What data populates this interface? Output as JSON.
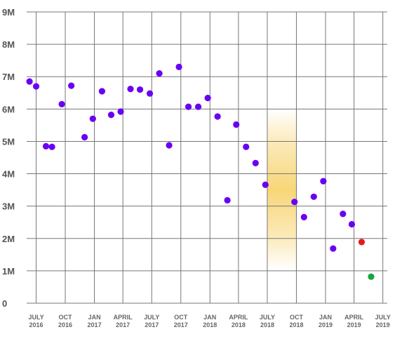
{
  "chart_data": {
    "type": "scatter",
    "title": "",
    "xlabel": "",
    "ylabel": "",
    "ylim": [
      0,
      9000000
    ],
    "y_ticks": [
      {
        "value": 0,
        "label": "0"
      },
      {
        "value": 1000000,
        "label": "1M"
      },
      {
        "value": 2000000,
        "label": "2M"
      },
      {
        "value": 3000000,
        "label": "3M"
      },
      {
        "value": 4000000,
        "label": "4M"
      },
      {
        "value": 5000000,
        "label": "5M"
      },
      {
        "value": 6000000,
        "label": "6M"
      },
      {
        "value": 7000000,
        "label": "7M"
      },
      {
        "value": 8000000,
        "label": "8M"
      },
      {
        "value": 9000000,
        "label": "9M"
      }
    ],
    "x_ticks": [
      {
        "date": "2016-07-01",
        "label": [
          "JULY",
          "2016"
        ]
      },
      {
        "date": "2016-10-01",
        "label": [
          "OCT",
          "2016"
        ]
      },
      {
        "date": "2017-01-01",
        "label": [
          "JAN",
          "2017"
        ]
      },
      {
        "date": "2017-04-01",
        "label": [
          "APRIL",
          "2017"
        ]
      },
      {
        "date": "2017-07-01",
        "label": [
          "JULY",
          "2017"
        ]
      },
      {
        "date": "2017-10-01",
        "label": [
          "OCT",
          "2017"
        ]
      },
      {
        "date": "2018-01-01",
        "label": [
          "JAN",
          "2018"
        ]
      },
      {
        "date": "2018-04-01",
        "label": [
          "APRIL",
          "2018"
        ]
      },
      {
        "date": "2018-07-01",
        "label": [
          "JULY",
          "2018"
        ]
      },
      {
        "date": "2018-10-01",
        "label": [
          "OCT",
          "2018"
        ]
      },
      {
        "date": "2019-01-01",
        "label": [
          "JAN",
          "2019"
        ]
      },
      {
        "date": "2019-04-01",
        "label": [
          "APRIL",
          "2019"
        ]
      },
      {
        "date": "2019-07-01",
        "label": [
          "JULY",
          "2019"
        ]
      }
    ],
    "xlim": [
      "2016-06-01",
      "2019-07-15"
    ],
    "grid": true,
    "highlight_band": {
      "from": "2018-07-01",
      "to": "2018-10-01",
      "color": "#f8d77a"
    },
    "colors": {
      "default": "#6a00f4",
      "highlight_red": "#e8191d",
      "highlight_green": "#1aa543",
      "grid": "#777777"
    },
    "series": [
      {
        "points": [
          {
            "x": "2016-06-10",
            "y": 6850000
          },
          {
            "x": "2016-07-01",
            "y": 6700000
          },
          {
            "x": "2016-08-01",
            "y": 4850000
          },
          {
            "x": "2016-08-20",
            "y": 4830000
          },
          {
            "x": "2016-09-20",
            "y": 6150000
          },
          {
            "x": "2016-10-20",
            "y": 6720000
          },
          {
            "x": "2016-12-01",
            "y": 5130000
          },
          {
            "x": "2016-12-27",
            "y": 5700000
          },
          {
            "x": "2017-01-25",
            "y": 6550000
          },
          {
            "x": "2017-02-23",
            "y": 5820000
          },
          {
            "x": "2017-03-25",
            "y": 5920000
          },
          {
            "x": "2017-04-25",
            "y": 6620000
          },
          {
            "x": "2017-05-25",
            "y": 6600000
          },
          {
            "x": "2017-06-25",
            "y": 6480000
          },
          {
            "x": "2017-07-25",
            "y": 7100000
          },
          {
            "x": "2017-08-25",
            "y": 4880000
          },
          {
            "x": "2017-09-25",
            "y": 7300000
          },
          {
            "x": "2017-10-25",
            "y": 6070000
          },
          {
            "x": "2017-11-25",
            "y": 6070000
          },
          {
            "x": "2017-12-25",
            "y": 6340000
          },
          {
            "x": "2018-01-25",
            "y": 5770000
          },
          {
            "x": "2018-02-25",
            "y": 3180000
          },
          {
            "x": "2018-03-25",
            "y": 5520000
          },
          {
            "x": "2018-04-25",
            "y": 4830000
          },
          {
            "x": "2018-05-25",
            "y": 4330000
          },
          {
            "x": "2018-06-25",
            "y": 3660000
          },
          {
            "x": "2018-09-25",
            "y": 3130000
          },
          {
            "x": "2018-10-25",
            "y": 2660000
          },
          {
            "x": "2018-11-25",
            "y": 3290000
          },
          {
            "x": "2018-12-25",
            "y": 3770000
          },
          {
            "x": "2019-01-25",
            "y": 1690000
          },
          {
            "x": "2019-02-25",
            "y": 2760000
          },
          {
            "x": "2019-03-25",
            "y": 2440000
          },
          {
            "x": "2019-04-25",
            "y": 1890000,
            "color": "#e8191d"
          },
          {
            "x": "2019-05-25",
            "y": 820000,
            "color": "#1aa543"
          }
        ]
      }
    ]
  }
}
